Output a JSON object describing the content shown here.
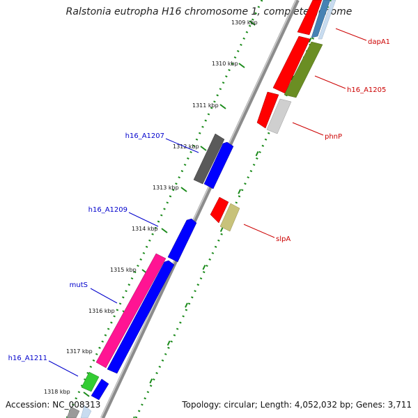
{
  "title": "Ralstonia eutropha H16 chromosome 1, complete genome",
  "footer": {
    "accession": "Accession: NC_008313",
    "summary": "Topology: circular; Length: 4,052,032 bp; Genes: 3,711"
  },
  "ticks": [
    "1309 kbp",
    "1310 kbp",
    "1311 kbp",
    "1312 kbp",
    "1313 kbp",
    "1314 kbp",
    "1315 kbp",
    "1316 kbp",
    "1317 kbp",
    "1318 kbp"
  ],
  "genes_left": [
    "h16_A1207",
    "h16_A1209",
    "mutS",
    "h16_A1211"
  ],
  "genes_right": [
    "dapA1",
    "h16_A1205",
    "phnP",
    "slpA"
  ],
  "colors": {
    "left_label": "#0000cc",
    "right_label": "#cc0000",
    "backbone": "#8c8c8c",
    "dotted_track": "#1a8a1a",
    "red": "#ff0000",
    "blue": "#0000ff",
    "olive": "#6b8e23",
    "light_gray": "#cfcfcf",
    "dark_gray": "#5a5a5a",
    "khaki": "#c8c27a",
    "pink": "#ff1493",
    "green": "#33cc33",
    "steel_blue": "#4682b4"
  }
}
